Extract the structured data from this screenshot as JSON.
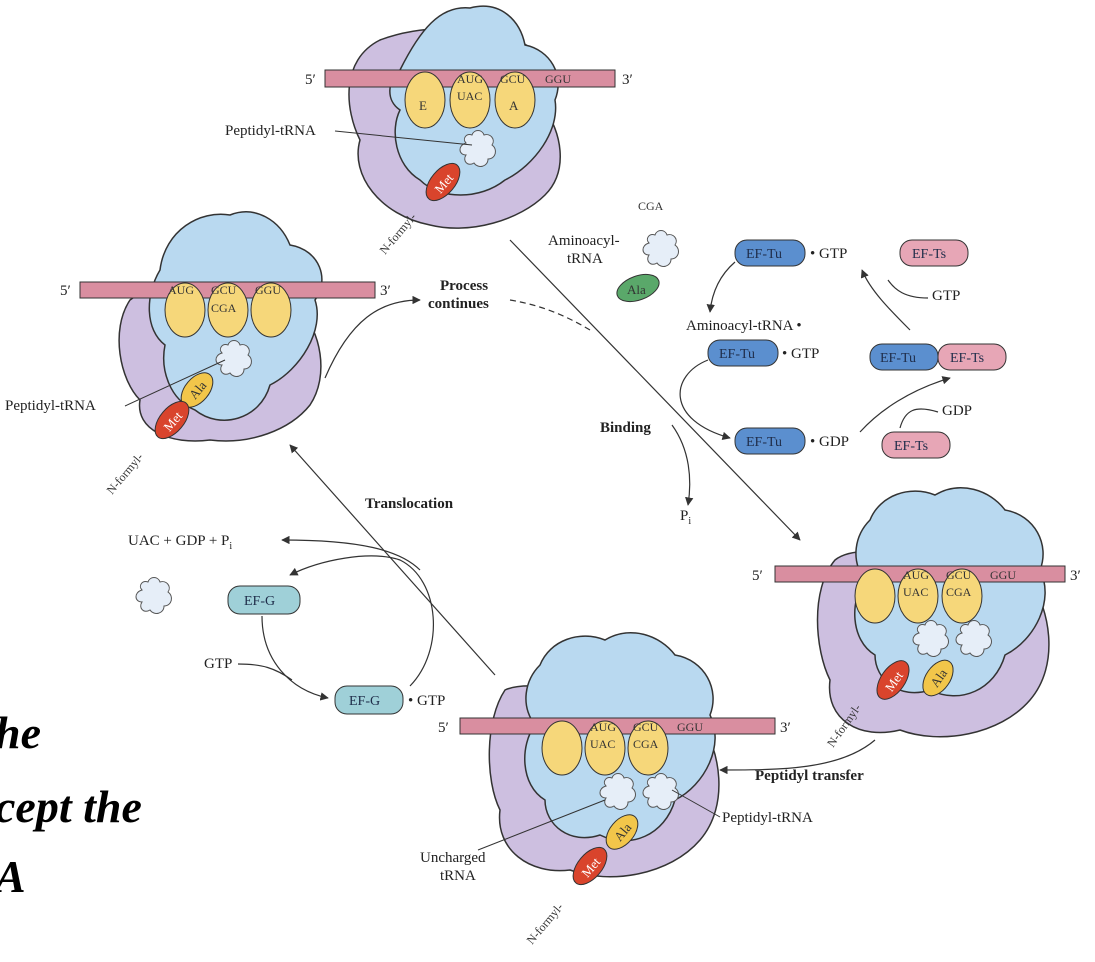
{
  "colors": {
    "ribosome_large": "#b9d9f0",
    "ribosome_small": "#cdbfe0",
    "mrna": "#d98ea0",
    "site": "#f6d77a",
    "met": "#d9442c",
    "ala_yellow": "#f2c64a",
    "ala_green": "#5aa86a",
    "ef_tu": "#5b8fcf",
    "ef_ts": "#e7a6b6",
    "ef_g": "#9fd0d8",
    "trna": "#dce9f6"
  },
  "ribosome_top": {
    "prime5": "5′",
    "prime3": "3′",
    "codons": [
      "AUG",
      "GCU",
      "GGU"
    ],
    "sites": [
      "E",
      "A"
    ],
    "anticodon": "UAC",
    "peptidyl_label": "Peptidyl-tRNA",
    "met": "Met",
    "nformyl": "N-formyl-"
  },
  "ribosome_left": {
    "prime5": "5′",
    "prime3": "3′",
    "codons": [
      "AUG",
      "GCU",
      "GGU"
    ],
    "anticodon": "CGA",
    "peptidyl_label": "Peptidyl-tRNA",
    "met": "Met",
    "ala": "Ala",
    "nformyl": "N-formyl-"
  },
  "ribosome_right": {
    "prime5": "5′",
    "prime3": "3′",
    "codons": [
      "AUG",
      "GCU",
      "GGU"
    ],
    "anticodons": [
      "UAC",
      "CGA"
    ],
    "met": "Met",
    "ala": "Ala",
    "nformyl": "N-formyl-"
  },
  "ribosome_bottom": {
    "prime5": "5′",
    "prime3": "3′",
    "codons": [
      "AUG",
      "GCU",
      "GGU"
    ],
    "anticodons": [
      "UAC",
      "CGA"
    ],
    "peptidyl_label": "Peptidyl-tRNA",
    "uncharged_label_1": "Uncharged",
    "uncharged_label_2": "tRNA",
    "met": "Met",
    "ala": "Ala",
    "nformyl": "N-formyl-"
  },
  "elongation": {
    "aminoacyl_1": "Aminoacyl-",
    "aminoacyl_2": "tRNA",
    "anticodon": "CGA",
    "ala": "Ala",
    "ef_tu": "EF-Tu",
    "ef_ts": "EF-Ts",
    "dot_gtp": "• GTP",
    "dot_gdp": "• GDP",
    "gtp": "GTP",
    "gdp": "GDP",
    "aminoacyl_complex": "Aminoacyl-tRNA •",
    "binding": "Binding",
    "p_main": "P",
    "p_sub": "i"
  },
  "process_continues_1": "Process",
  "process_continues_2": "continues",
  "translocation": "Translocation",
  "translocation_products": {
    "text": "UAC + GDP + P",
    "sub": "i"
  },
  "ef_g": "EF-G",
  "ef_g_gtp_dot": "• GTP",
  "gtp_in": "GTP",
  "peptidyl_transfer": "Peptidyl transfer",
  "overlay_text": [
    "he",
    "cept the",
    "A"
  ]
}
